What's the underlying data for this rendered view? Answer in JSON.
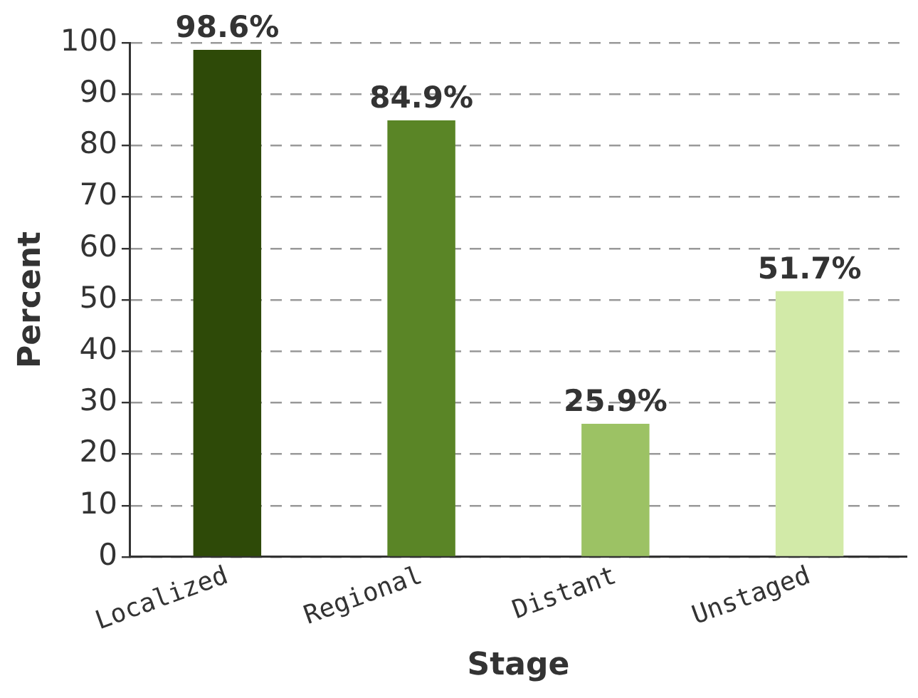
{
  "chart_data": {
    "type": "bar",
    "xlabel": "Stage",
    "ylabel": "Percent",
    "categories": [
      "Localized",
      "Regional",
      "Distant",
      "Unstaged"
    ],
    "values": [
      98.6,
      84.9,
      25.9,
      51.7
    ],
    "colors": [
      "#2e4a08",
      "#5a8526",
      "#9cc264",
      "#d2eaa8"
    ],
    "value_labels": [
      "98.6%",
      "84.9%",
      "25.9%",
      "51.7%"
    ],
    "ylim": [
      0,
      100
    ],
    "yticks": [
      0,
      10,
      20,
      30,
      40,
      50,
      60,
      70,
      80,
      90,
      100
    ],
    "grid": "y",
    "legend": false
  }
}
